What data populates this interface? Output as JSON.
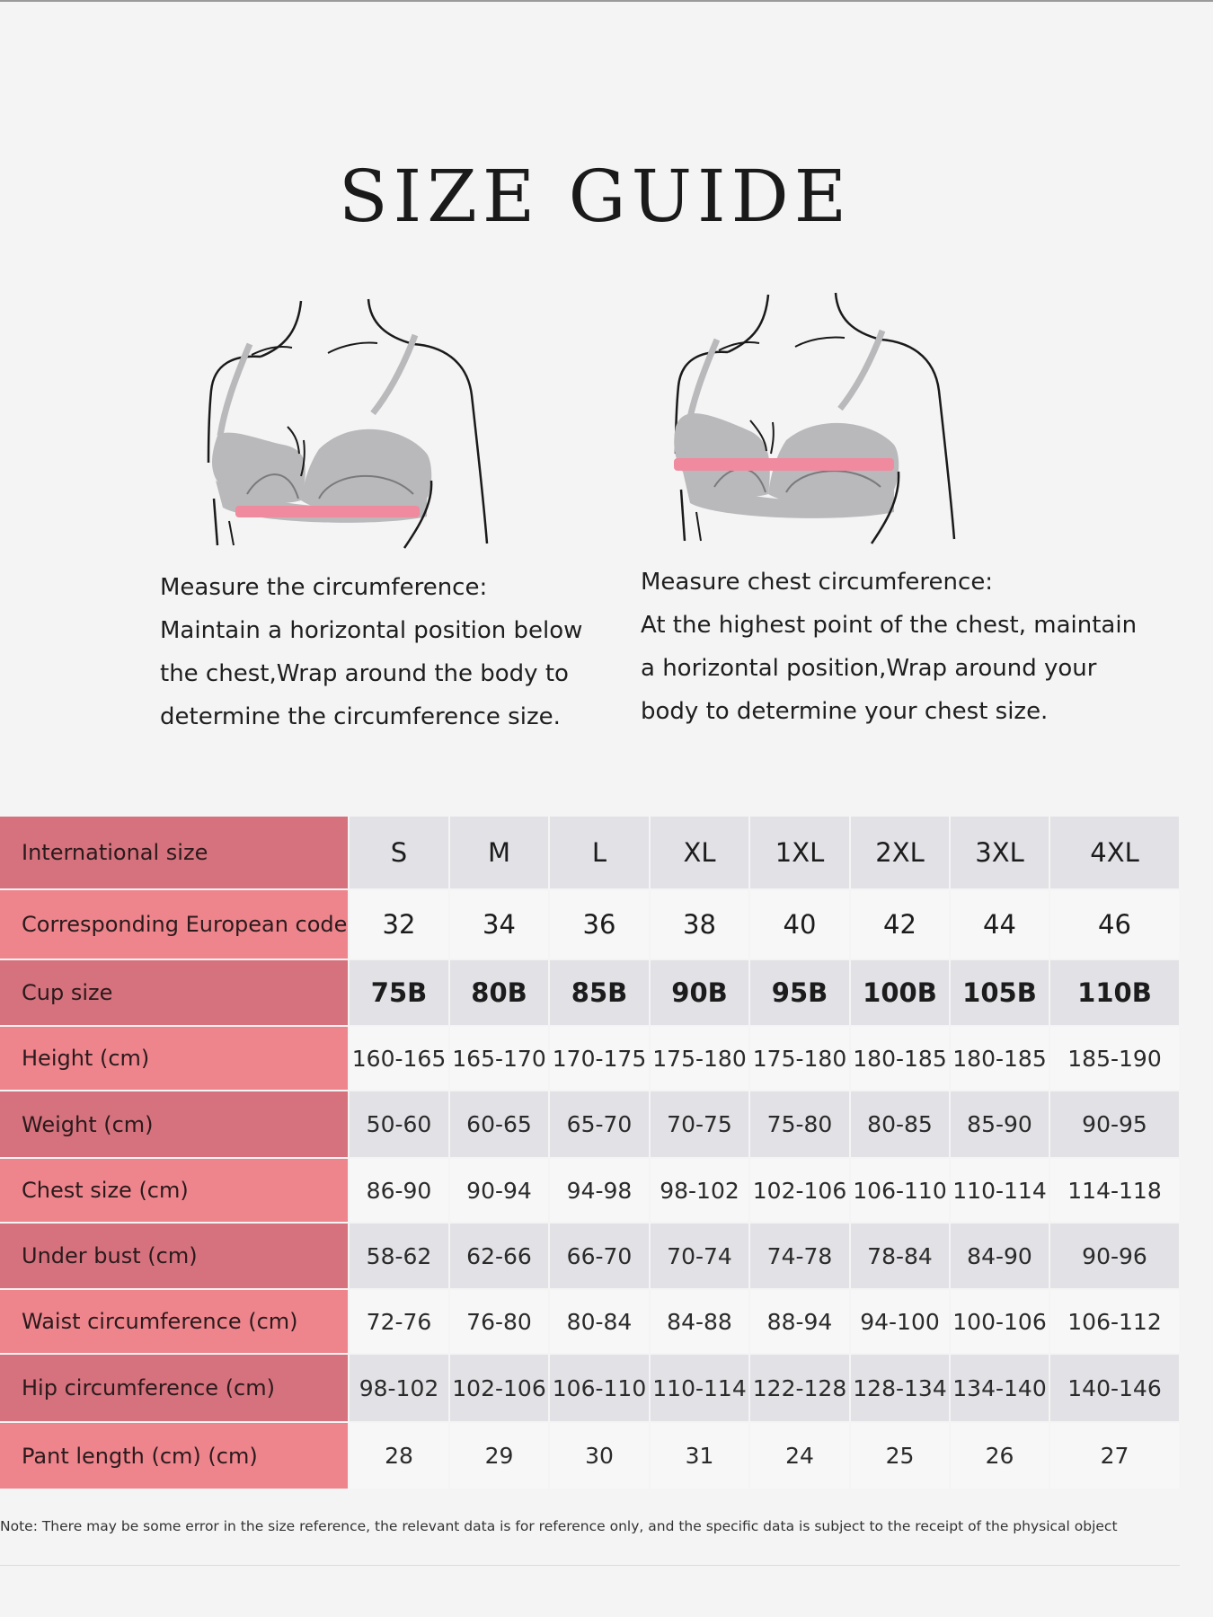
{
  "title": "SIZE GUIDE",
  "illustrations": [
    {
      "icon": "bra-underbust-measure-icon"
    },
    {
      "icon": "bra-chest-measure-icon"
    }
  ],
  "instructions": [
    {
      "lines": [
        "Measure the circumference:",
        "Maintain a horizontal position below",
        "the chest,Wrap around the body to",
        "determine the circumference size."
      ]
    },
    {
      "lines": [
        "Measure chest circumference:",
        "At the highest point of the chest, maintain",
        "a horizontal position,Wrap around your",
        "body to determine your chest size."
      ]
    }
  ],
  "table": {
    "rows": [
      {
        "label": "International size",
        "values": [
          "S",
          "M",
          "L",
          "XL",
          "1XL",
          "2XL",
          "3XL",
          "4XL"
        ]
      },
      {
        "label": "Corresponding European code",
        "values": [
          "32",
          "34",
          "36",
          "38",
          "40",
          "42",
          "44",
          "46"
        ]
      },
      {
        "label": "Cup size",
        "values": [
          "75B",
          "80B",
          "85B",
          "90B",
          "95B",
          "100B",
          "105B",
          "110B"
        ]
      },
      {
        "label": "Height (cm)",
        "values": [
          "160-165",
          "165-170",
          "170-175",
          "175-180",
          "175-180",
          "180-185",
          "180-185",
          "185-190"
        ]
      },
      {
        "label": "Weight (cm)",
        "values": [
          "50-60",
          "60-65",
          "65-70",
          "70-75",
          "75-80",
          "80-85",
          "85-90",
          "90-95"
        ]
      },
      {
        "label": "Chest size (cm)",
        "values": [
          "86-90",
          "90-94",
          "94-98",
          "98-102",
          "102-106",
          "106-110",
          "110-114",
          "114-118"
        ]
      },
      {
        "label": "Under bust (cm)",
        "values": [
          "58-62",
          "62-66",
          "66-70",
          "70-74",
          "74-78",
          "78-84",
          "84-90",
          "90-96"
        ]
      },
      {
        "label": "Waist circumference (cm)",
        "values": [
          "72-76",
          "76-80",
          "80-84",
          "84-88",
          "88-94",
          "94-100",
          "100-106",
          "106-112"
        ]
      },
      {
        "label": "Hip circumference (cm)",
        "values": [
          "98-102",
          "102-106",
          "106-110",
          "110-114",
          "122-128",
          "128-134",
          "134-140",
          "140-146"
        ]
      },
      {
        "label": "Pant length (cm) (cm)",
        "values": [
          "28",
          "29",
          "30",
          "31",
          "24",
          "25",
          "26",
          "27"
        ]
      }
    ]
  },
  "note": "Note: There may be some error in the size reference, the relevant data is for reference only, and the specific data is subject to the receipt of the physical object",
  "colors": {
    "label_dark": "#d5727d",
    "label_light": "#ee858c",
    "value_dark": "#e1e1e6",
    "value_light": "#f7f7f8",
    "measure_band": "#f08a9e",
    "bra_gray": "#b9b9bb"
  }
}
